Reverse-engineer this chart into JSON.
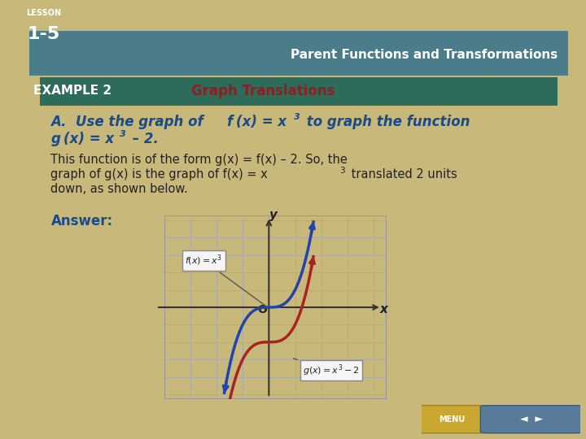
{
  "bg_color": "#c8b87a",
  "slide_bg": "#ffffff",
  "header_bg": "#4a7c8a",
  "example_bg": "#2d6b5a",
  "lesson_bg": "#1a3a5c",
  "title_text": "Graph Translations",
  "title_color": "#8b2020",
  "example_label": "EXAMPLE 2",
  "example_label_color": "#ffffff",
  "lesson_label": "LESSON\n1-5",
  "header_right": "Parent Functions and Transformations",
  "question_a_color": "#1a4a8a",
  "body_text_color": "#222222",
  "answer_color": "#1a4a8a",
  "f_color": "#2244aa",
  "g_color": "#aa2222",
  "x_range": [
    -3,
    3
  ],
  "grid_color": "#aaaaaa",
  "axis_color": "#333333",
  "annotation_box_color": "#f0f0f0",
  "annotation_border_color": "#888888"
}
